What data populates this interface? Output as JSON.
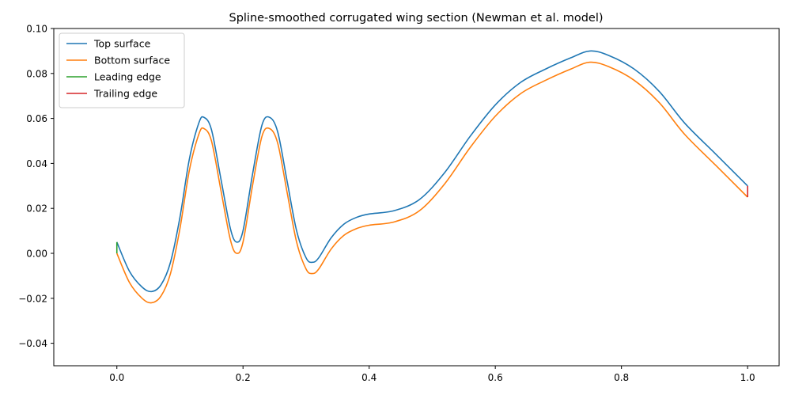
{
  "chart_data": {
    "type": "line",
    "title": "Spline-smoothed corrugated wing section (Newman et al. model)",
    "xlabel": "",
    "ylabel": "",
    "xlim": [
      -0.1,
      1.05
    ],
    "ylim": [
      -0.05,
      0.1
    ],
    "xticks": [
      0.0,
      0.2,
      0.4,
      0.6,
      0.8,
      1.0
    ],
    "xtick_labels": [
      "0.0",
      "0.2",
      "0.4",
      "0.6",
      "0.8",
      "1.0"
    ],
    "yticks": [
      -0.04,
      -0.02,
      0.0,
      0.02,
      0.04,
      0.06,
      0.08,
      0.1
    ],
    "ytick_labels": [
      "−0.04",
      "−0.02",
      "0.00",
      "0.02",
      "0.04",
      "0.06",
      "0.08",
      "0.10"
    ],
    "grid": false,
    "legend_position": "top-left",
    "series": [
      {
        "name": "Top surface",
        "color": "#1f77b4",
        "x": [
          0.0,
          0.02,
          0.04,
          0.055,
          0.07,
          0.085,
          0.1,
          0.115,
          0.13,
          0.138,
          0.15,
          0.165,
          0.18,
          0.19,
          0.2,
          0.215,
          0.23,
          0.242,
          0.255,
          0.27,
          0.285,
          0.3,
          0.31,
          0.32,
          0.34,
          0.36,
          0.38,
          0.4,
          0.44,
          0.48,
          0.52,
          0.56,
          0.6,
          0.64,
          0.68,
          0.72,
          0.75,
          0.78,
          0.82,
          0.86,
          0.9,
          0.95,
          1.0
        ],
        "y": [
          0.005,
          -0.008,
          -0.015,
          -0.017,
          -0.014,
          -0.004,
          0.016,
          0.042,
          0.058,
          0.0605,
          0.055,
          0.033,
          0.011,
          0.005,
          0.01,
          0.035,
          0.057,
          0.0605,
          0.054,
          0.032,
          0.01,
          -0.002,
          -0.004,
          -0.002,
          0.007,
          0.013,
          0.016,
          0.0175,
          0.019,
          0.024,
          0.036,
          0.052,
          0.066,
          0.076,
          0.082,
          0.087,
          0.09,
          0.088,
          0.082,
          0.072,
          0.058,
          0.044,
          0.03
        ]
      },
      {
        "name": "Bottom surface",
        "color": "#ff7f0e",
        "x": [
          0.0,
          0.02,
          0.04,
          0.055,
          0.07,
          0.085,
          0.1,
          0.115,
          0.13,
          0.138,
          0.15,
          0.165,
          0.18,
          0.19,
          0.2,
          0.215,
          0.23,
          0.242,
          0.255,
          0.27,
          0.285,
          0.3,
          0.31,
          0.32,
          0.34,
          0.36,
          0.38,
          0.4,
          0.44,
          0.48,
          0.52,
          0.56,
          0.6,
          0.64,
          0.68,
          0.72,
          0.75,
          0.78,
          0.82,
          0.86,
          0.9,
          0.95,
          1.0
        ],
        "y": [
          0.0,
          -0.013,
          -0.02,
          -0.022,
          -0.019,
          -0.009,
          0.011,
          0.037,
          0.053,
          0.0555,
          0.05,
          0.028,
          0.006,
          0.0,
          0.005,
          0.03,
          0.052,
          0.0555,
          0.049,
          0.027,
          0.005,
          -0.007,
          -0.009,
          -0.007,
          0.002,
          0.008,
          0.011,
          0.0125,
          0.014,
          0.019,
          0.031,
          0.047,
          0.061,
          0.071,
          0.077,
          0.082,
          0.085,
          0.083,
          0.077,
          0.067,
          0.053,
          0.039,
          0.025
        ]
      },
      {
        "name": "Leading edge",
        "color": "#2ca02c",
        "x": [
          0.0,
          0.0
        ],
        "y": [
          0.0,
          0.005
        ]
      },
      {
        "name": "Trailing edge",
        "color": "#d62728",
        "x": [
          1.0,
          1.0
        ],
        "y": [
          0.025,
          0.03
        ]
      }
    ]
  }
}
